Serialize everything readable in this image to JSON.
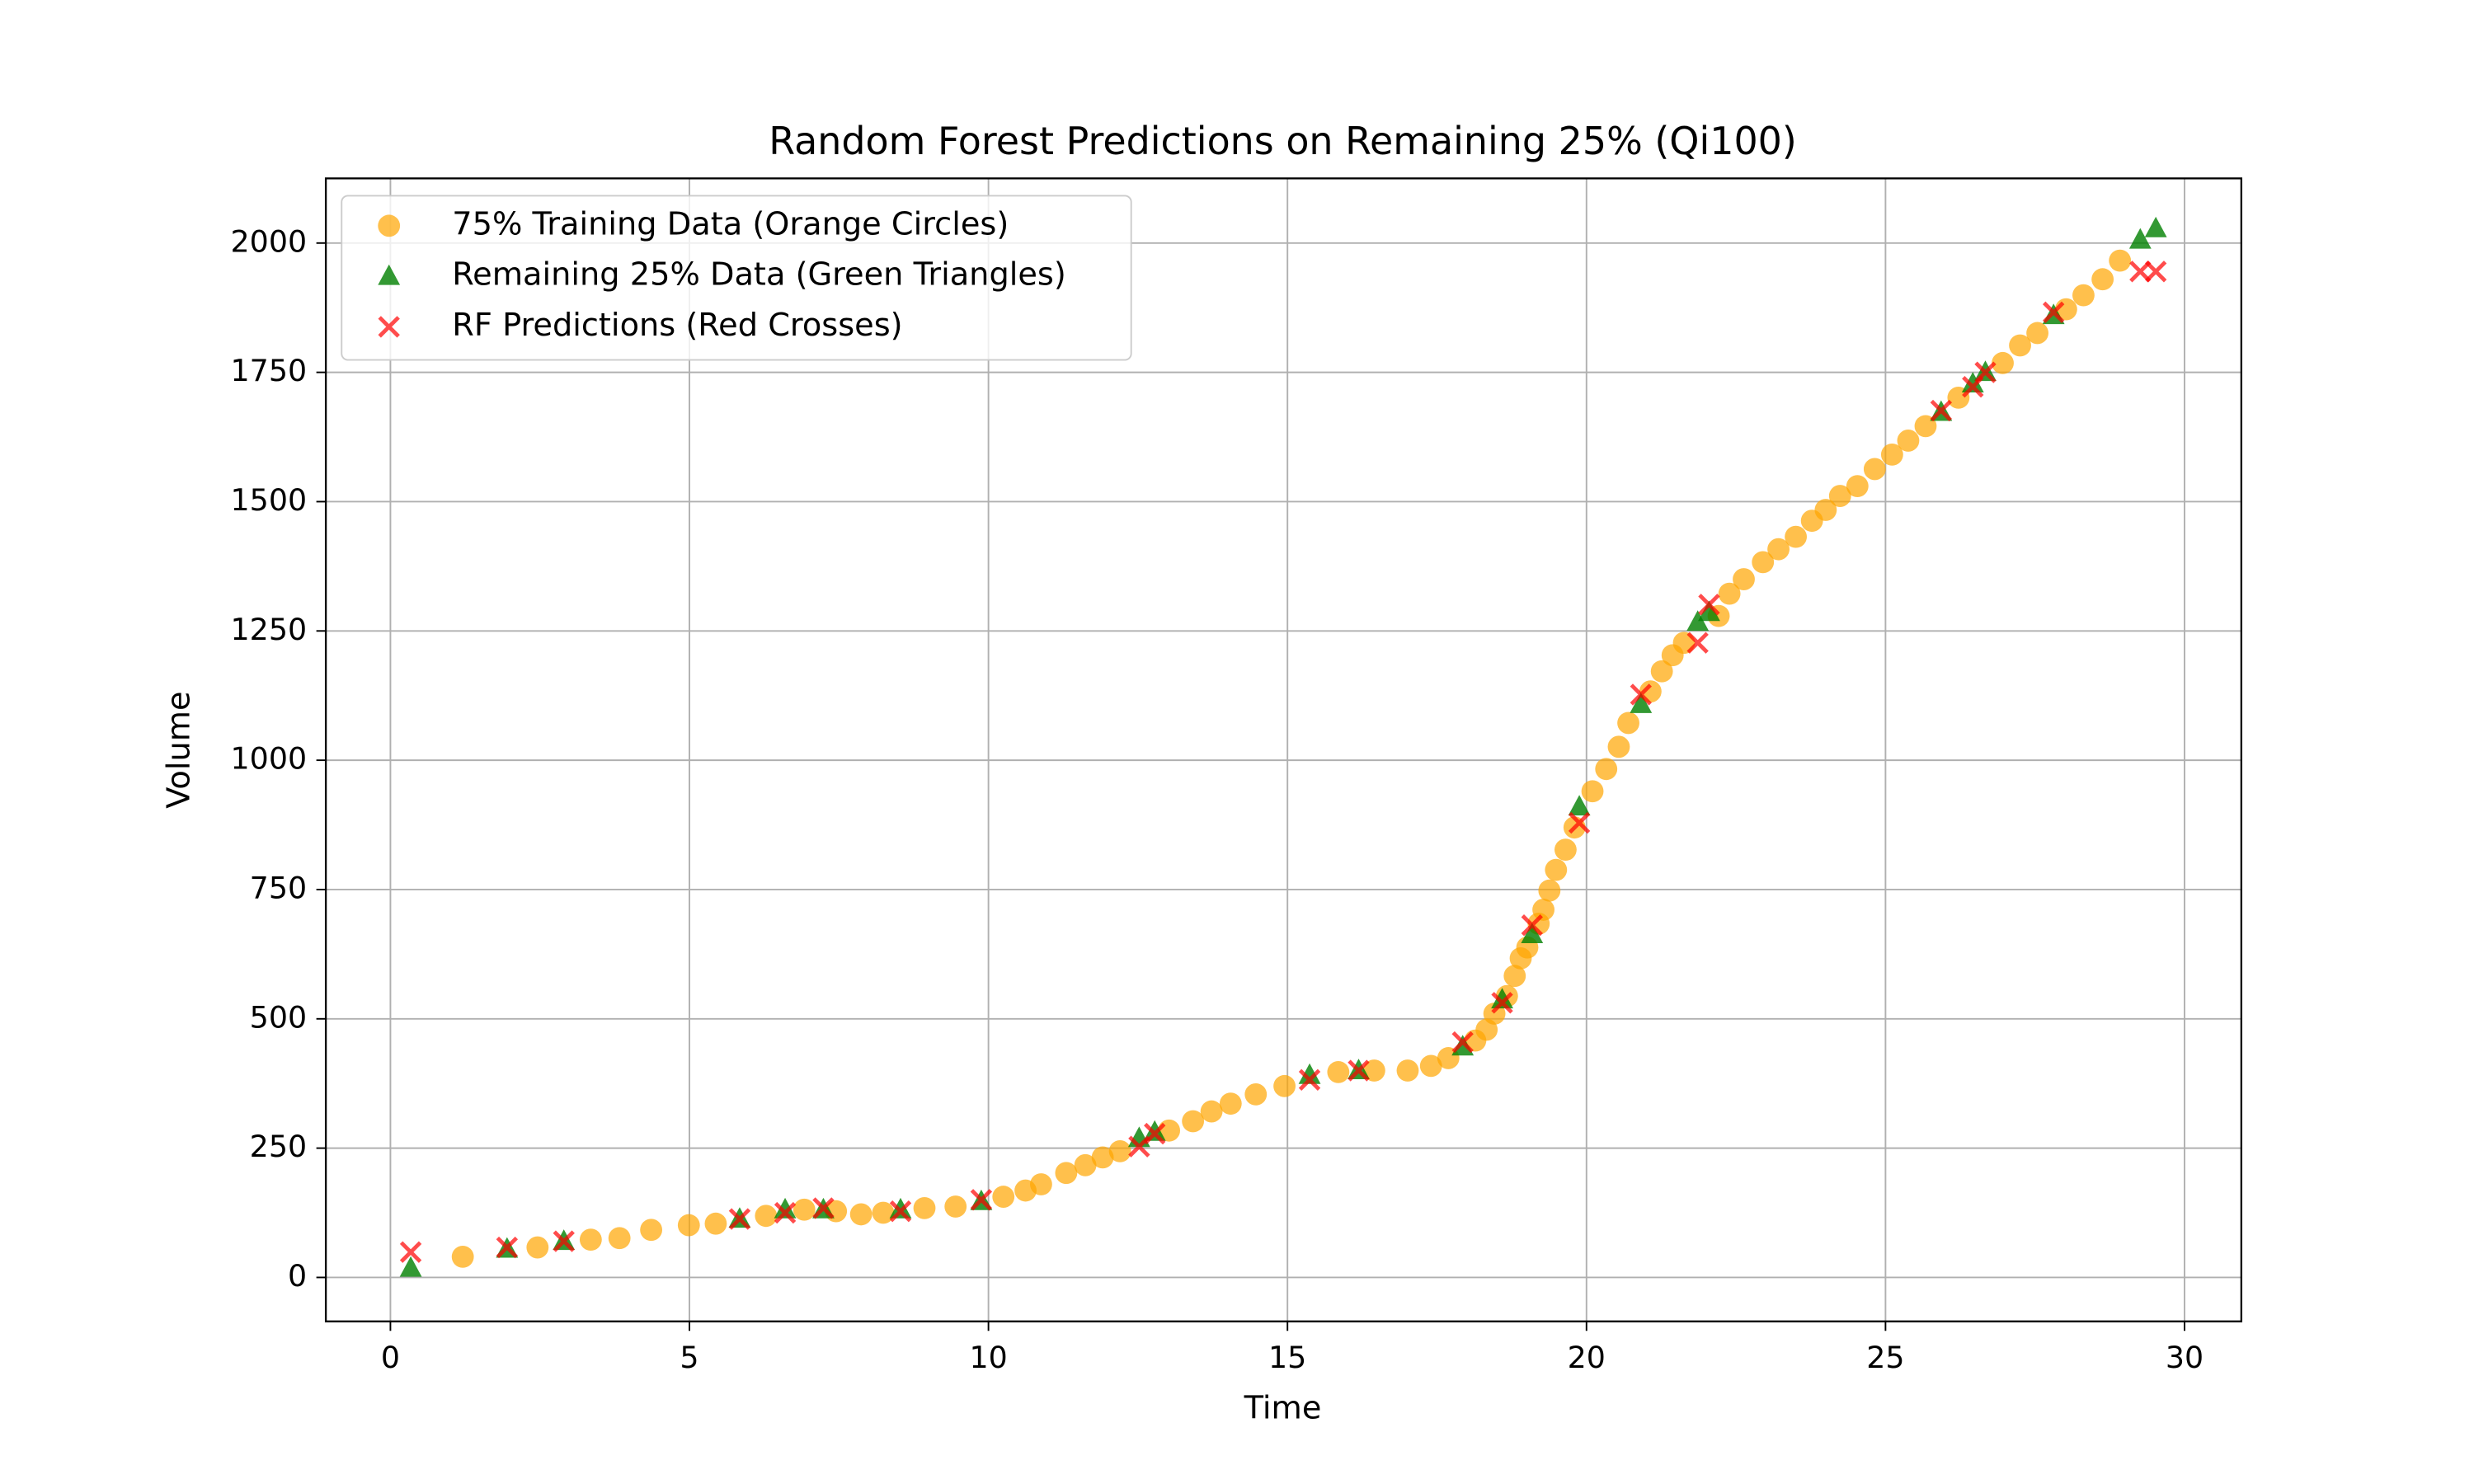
{
  "chart_data": {
    "type": "scatter",
    "title": "Random Forest Predictions on Remaining 25% (Qi100)",
    "x_label": "Time",
    "y_label": "Volume",
    "xlim": [
      -1.08,
      30.95
    ],
    "ylim": [
      -85,
      2125
    ],
    "xticks": [
      0,
      5,
      10,
      15,
      20,
      25,
      30
    ],
    "yticks": [
      0,
      250,
      500,
      750,
      1000,
      1250,
      1500,
      1750,
      2000
    ],
    "grid": true,
    "legend": "upper left",
    "series": [
      {
        "name": "75% Training Data (Orange Circles)",
        "color": "#ffa500",
        "marker": "circle",
        "x": [
          1.21,
          2.46,
          3.35,
          3.83,
          4.36,
          4.99,
          5.44,
          6.28,
          6.92,
          7.45,
          7.87,
          8.24,
          8.93,
          9.45,
          10.25,
          10.62,
          10.88,
          11.3,
          11.62,
          11.91,
          12.2,
          13.02,
          13.42,
          13.73,
          14.05,
          14.47,
          14.95,
          15.85,
          16.45,
          17.01,
          17.4,
          17.69,
          18.14,
          18.33,
          18.46,
          18.67,
          18.8,
          18.9,
          19.01,
          19.2,
          19.28,
          19.38,
          19.49,
          19.65,
          19.8,
          20.1,
          20.33,
          20.54,
          20.7,
          21.07,
          21.26,
          21.44,
          21.63,
          22.21,
          22.39,
          22.63,
          22.95,
          23.21,
          23.5,
          23.77,
          24.0,
          24.24,
          24.53,
          24.82,
          25.11,
          25.38,
          25.67,
          26.22,
          26.96,
          27.25,
          27.54,
          28.02,
          28.31,
          28.63,
          28.92
        ],
        "values": [
          40,
          58,
          73,
          76,
          92,
          101,
          104,
          119,
          131,
          128,
          122,
          125,
          134,
          137,
          156,
          168,
          180,
          202,
          217,
          232,
          244,
          284,
          302,
          321,
          336,
          354,
          370,
          397,
          400,
          400,
          409,
          424,
          458,
          479,
          510,
          544,
          583,
          617,
          638,
          684,
          711,
          748,
          788,
          827,
          870,
          940,
          983,
          1026,
          1072,
          1133,
          1172,
          1203,
          1227,
          1279,
          1322,
          1350,
          1383,
          1408,
          1432,
          1463,
          1484,
          1511,
          1530,
          1563,
          1591,
          1618,
          1646,
          1701,
          1768,
          1802,
          1826,
          1872,
          1899,
          1930,
          1966
        ]
      },
      {
        "name": "Remaining 25% Data (Green Triangles)",
        "color": "#008000",
        "marker": "triangle",
        "x": [
          0.34,
          1.95,
          2.9,
          5.84,
          6.6,
          7.24,
          8.53,
          9.88,
          12.52,
          12.78,
          15.37,
          16.19,
          17.93,
          18.59,
          19.09,
          19.88,
          20.91,
          21.86,
          22.05,
          25.93,
          26.46,
          26.67,
          27.81,
          29.26,
          29.52
        ],
        "values": [
          18,
          55,
          70,
          113,
          131,
          131,
          131,
          147,
          269,
          281,
          391,
          400,
          446,
          537,
          663,
          910,
          1108,
          1267,
          1286,
          1673,
          1728,
          1750,
          1860,
          2006,
          2028
        ]
      },
      {
        "name": "RF Predictions (Red Crosses)",
        "color": "#ff0000",
        "marker": "x",
        "x": [
          0.34,
          1.95,
          2.9,
          5.84,
          6.6,
          7.24,
          8.53,
          9.88,
          12.52,
          12.78,
          15.37,
          16.19,
          17.93,
          18.59,
          19.09,
          19.88,
          20.91,
          21.86,
          22.05,
          25.93,
          26.46,
          26.67,
          27.81,
          29.26,
          29.52
        ],
        "values": [
          49,
          58,
          70,
          113,
          125,
          134,
          128,
          150,
          253,
          278,
          382,
          400,
          455,
          531,
          681,
          879,
          1127,
          1227,
          1301,
          1676,
          1722,
          1750,
          1866,
          1945,
          1945
        ]
      }
    ]
  }
}
